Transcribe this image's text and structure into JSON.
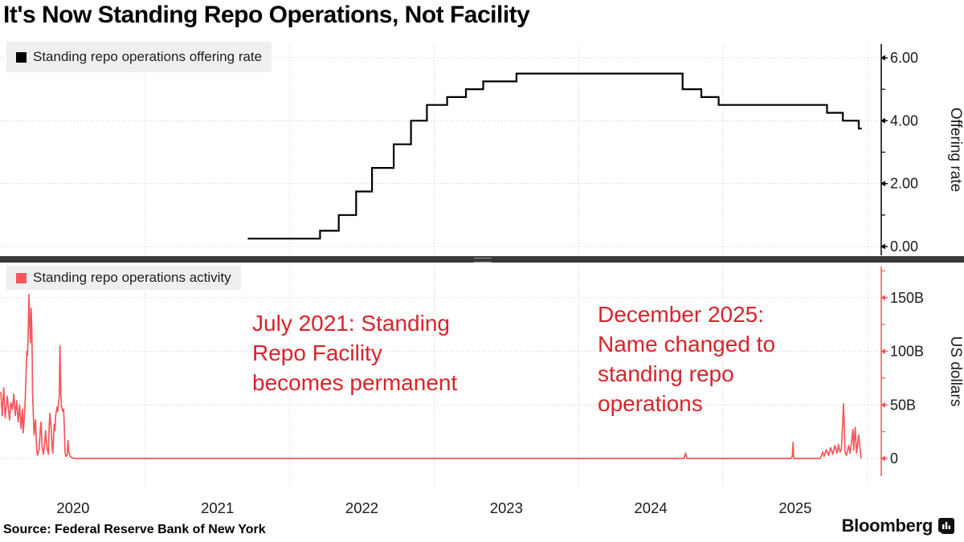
{
  "title": "It's Now Standing Repo Operations, Not Facility",
  "source": "Source: Federal Reserve Bank of New York",
  "logo": {
    "wordmark": "Bloomberg",
    "icon": "bloomberg-bars-icon"
  },
  "colors": {
    "rate_line": "#000000",
    "activity_line": "#f4575c",
    "annotation_red": "#d8232a",
    "grid": "#c9c9c9",
    "separator": "#3a3a3a",
    "legend_bg": "#efefef",
    "text": "#1a1a1a"
  },
  "annotations": {
    "july": {
      "text": "July 2021: Standing\nRepo Facility\nbecomes permanent"
    },
    "december": {
      "text": "December 2025:\nName changed to\nstanding repo\noperations"
    }
  },
  "xaxis": {
    "year_labels": [
      "2020",
      "2021",
      "2022",
      "2023",
      "2024",
      "2025"
    ],
    "gridline_january_years": [
      2021,
      2022,
      2023,
      2024,
      2025,
      2026
    ],
    "xlim_decimal_years": [
      2020.0,
      2026.1
    ]
  },
  "chart_data": [
    {
      "type": "line",
      "style": "step-after",
      "series_name": "Standing repo operations offering rate",
      "color": "#000000",
      "ylabel": "Offering rate",
      "ytick_labels": [
        "0.00",
        "2.00",
        "4.00",
        "6.00"
      ],
      "ytick_values": [
        0,
        2,
        4,
        6
      ],
      "yticks_minor": [
        1,
        3,
        5
      ],
      "ylim": [
        0,
        6.4
      ],
      "legend_position": "top-left",
      "grid": "dotted",
      "steps_decimal_year_rate": [
        [
          2021.71,
          0.25
        ],
        [
          2022.21,
          0.5
        ],
        [
          2022.34,
          1.0
        ],
        [
          2022.46,
          1.75
        ],
        [
          2022.57,
          2.5
        ],
        [
          2022.72,
          3.25
        ],
        [
          2022.84,
          4.0
        ],
        [
          2022.95,
          4.5
        ],
        [
          2023.09,
          4.75
        ],
        [
          2023.22,
          5.0
        ],
        [
          2023.34,
          5.25
        ],
        [
          2023.57,
          5.5
        ],
        [
          2024.72,
          5.0
        ],
        [
          2024.85,
          4.75
        ],
        [
          2024.97,
          4.5
        ],
        [
          2025.72,
          4.25
        ],
        [
          2025.83,
          4.0
        ],
        [
          2025.94,
          3.75
        ]
      ],
      "x_end_decimal_year": 2025.96
    },
    {
      "type": "line",
      "series_name": "Standing repo operations activity",
      "color": "#f4575c",
      "ylabel": "US dollars",
      "ytick_labels": [
        "0",
        "50B",
        "100B",
        "150B"
      ],
      "ytick_values": [
        0,
        50,
        100,
        150
      ],
      "yticks_minor": [
        25,
        75,
        125,
        175
      ],
      "ylim": [
        0,
        178
      ],
      "legend_position": "top-left",
      "grid": "dotted",
      "points_decimal_year_billions": [
        [
          2020.0,
          62
        ],
        [
          2020.01,
          40
        ],
        [
          2020.02,
          66
        ],
        [
          2020.03,
          38
        ],
        [
          2020.045,
          58
        ],
        [
          2020.06,
          36
        ],
        [
          2020.07,
          52
        ],
        [
          2020.08,
          46
        ],
        [
          2020.09,
          60
        ],
        [
          2020.1,
          40
        ],
        [
          2020.11,
          54
        ],
        [
          2020.12,
          34
        ],
        [
          2020.13,
          50
        ],
        [
          2020.14,
          28
        ],
        [
          2020.15,
          46
        ],
        [
          2020.155,
          24
        ],
        [
          2020.165,
          42
        ],
        [
          2020.17,
          60
        ],
        [
          2020.175,
          80
        ],
        [
          2020.18,
          100
        ],
        [
          2020.185,
          96
        ],
        [
          2020.19,
          120
        ],
        [
          2020.195,
          153
        ],
        [
          2020.2,
          128
        ],
        [
          2020.205,
          108
        ],
        [
          2020.21,
          140
        ],
        [
          2020.215,
          118
        ],
        [
          2020.22,
          60
        ],
        [
          2020.225,
          40
        ],
        [
          2020.23,
          22
        ],
        [
          2020.235,
          30
        ],
        [
          2020.24,
          36
        ],
        [
          2020.245,
          18
        ],
        [
          2020.25,
          6
        ],
        [
          2020.255,
          3
        ],
        [
          2020.265,
          8
        ],
        [
          2020.275,
          30
        ],
        [
          2020.28,
          34
        ],
        [
          2020.285,
          12
        ],
        [
          2020.295,
          4
        ],
        [
          2020.305,
          16
        ],
        [
          2020.31,
          26
        ],
        [
          2020.32,
          10
        ],
        [
          2020.33,
          4
        ],
        [
          2020.335,
          30
        ],
        [
          2020.34,
          42
        ],
        [
          2020.35,
          26
        ],
        [
          2020.355,
          12
        ],
        [
          2020.36,
          5
        ],
        [
          2020.365,
          18
        ],
        [
          2020.37,
          32
        ],
        [
          2020.375,
          26
        ],
        [
          2020.38,
          40
        ],
        [
          2020.39,
          48
        ],
        [
          2020.395,
          44
        ],
        [
          2020.4,
          52
        ],
        [
          2020.405,
          58
        ],
        [
          2020.41,
          105
        ],
        [
          2020.415,
          66
        ],
        [
          2020.42,
          48
        ],
        [
          2020.43,
          44
        ],
        [
          2020.435,
          46
        ],
        [
          2020.44,
          28
        ],
        [
          2020.445,
          6
        ],
        [
          2020.45,
          2
        ],
        [
          2020.46,
          3
        ],
        [
          2020.465,
          17
        ],
        [
          2020.47,
          7
        ],
        [
          2020.48,
          2
        ],
        [
          2020.49,
          1
        ],
        [
          2020.51,
          0
        ],
        [
          2024.73,
          0
        ],
        [
          2024.74,
          5
        ],
        [
          2024.75,
          0
        ],
        [
          2025.47,
          0
        ],
        [
          2025.48,
          2
        ],
        [
          2025.485,
          15
        ],
        [
          2025.49,
          0
        ],
        [
          2025.67,
          0
        ],
        [
          2025.68,
          2
        ],
        [
          2025.69,
          6
        ],
        [
          2025.7,
          2
        ],
        [
          2025.715,
          8
        ],
        [
          2025.73,
          3
        ],
        [
          2025.745,
          10
        ],
        [
          2025.76,
          4
        ],
        [
          2025.775,
          12
        ],
        [
          2025.79,
          5
        ],
        [
          2025.8,
          13
        ],
        [
          2025.81,
          6
        ],
        [
          2025.82,
          9
        ],
        [
          2025.835,
          51
        ],
        [
          2025.845,
          6
        ],
        [
          2025.855,
          3
        ],
        [
          2025.87,
          12
        ],
        [
          2025.88,
          5
        ],
        [
          2025.89,
          16
        ],
        [
          2025.9,
          27
        ],
        [
          2025.905,
          8
        ],
        [
          2025.915,
          29
        ],
        [
          2025.925,
          5
        ],
        [
          2025.94,
          22
        ],
        [
          2025.955,
          0
        ]
      ]
    }
  ]
}
